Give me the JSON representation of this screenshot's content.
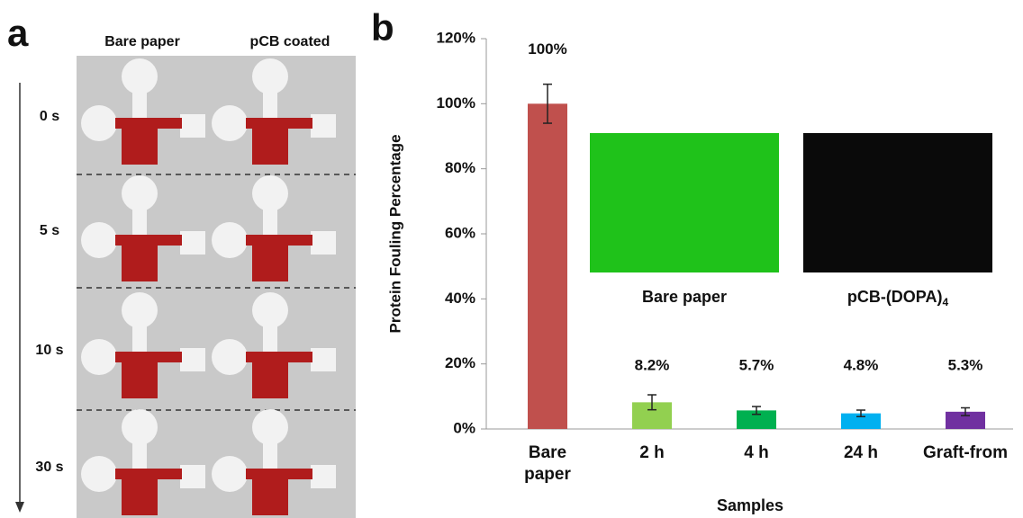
{
  "panel_labels": [
    "a",
    "b"
  ],
  "panel_a": {
    "columns": [
      "Bare paper",
      "pCB coated"
    ],
    "times": [
      "0 s",
      "5 s",
      "10 s",
      "30 s"
    ]
  },
  "chart_data": {
    "type": "bar",
    "categories": [
      "Bare\npaper",
      "2 h",
      "4 h",
      "24 h",
      "Graft-from"
    ],
    "values": [
      100,
      8.2,
      5.7,
      4.8,
      5.3
    ],
    "errors": [
      6,
      2.3,
      1.2,
      1,
      1.2
    ],
    "value_labels": [
      "100%",
      "8.2%",
      "5.7%",
      "4.8%",
      "5.3%"
    ],
    "colors": [
      "#c0504d",
      "#92d050",
      "#00b050",
      "#00b0f0",
      "#7030a0"
    ],
    "x_label": "Samples",
    "y_label": "Protein Fouling Percentage",
    "ylim": [
      0,
      120
    ],
    "yticks": [
      {
        "value": 0,
        "label": "0%"
      },
      {
        "value": 20,
        "label": "20%"
      },
      {
        "value": 40,
        "label": "40%"
      },
      {
        "value": 60,
        "label": "60%"
      },
      {
        "value": 80,
        "label": "80%"
      },
      {
        "value": 100,
        "label": "100%"
      },
      {
        "value": 120,
        "label": "120%"
      }
    ],
    "insets": [
      {
        "label": "Bare paper",
        "color": "#1fc21a"
      },
      {
        "label": "pCB-(DOPA)",
        "subscript": "4",
        "color": "#0a0a0a"
      }
    ]
  }
}
